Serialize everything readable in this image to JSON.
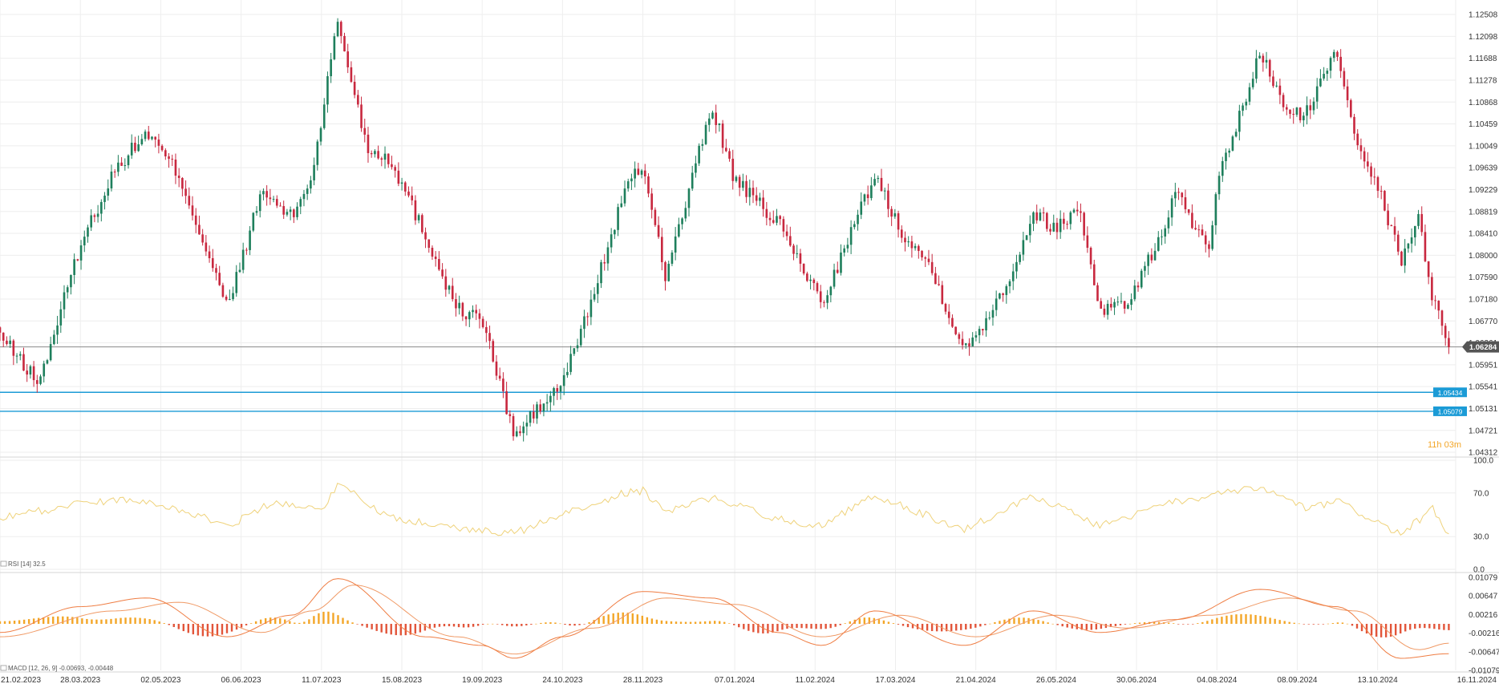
{
  "colors": {
    "up": "#1e7f5c",
    "down": "#c8283f",
    "price_line": "#8a8a8a",
    "support": "#1b9bd6",
    "rsi": "#efd27a",
    "macd_line": "#ef7d43",
    "signal_line": "#f09a66",
    "hist_pos": "#f3a628",
    "hist_neg": "#e2553a",
    "grid": "#eeeeee",
    "countdown": "#f3a628"
  },
  "countdown": "11h 03m",
  "chart_data": [
    {
      "type": "candlestick",
      "title": "",
      "x_axis": {
        "type": "date",
        "range": [
          "2023-02-21",
          "2024-11-16"
        ],
        "tick_labels": [
          "21.02.2023",
          "28.03.2023",
          "02.05.2023",
          "06.06.2023",
          "11.07.2023",
          "15.08.2023",
          "19.09.2023",
          "24.10.2023",
          "28.11.2023",
          "07.01.2024",
          "11.02.2024",
          "17.03.2024",
          "21.04.2024",
          "26.05.2024",
          "30.06.2024",
          "04.08.2024",
          "08.09.2024",
          "13.10.2024",
          "16.11.2024"
        ]
      },
      "y_axis": {
        "range": [
          1.04312,
          1.12508
        ],
        "tick_labels": [
          "1.12508",
          "1.12098",
          "1.11688",
          "1.11278",
          "1.10868",
          "1.10459",
          "1.10049",
          "1.09639",
          "1.09229",
          "1.08819",
          "1.08410",
          "1.08000",
          "1.07590",
          "1.07180",
          "1.06770",
          "1.06361",
          "1.05951",
          "1.05541",
          "1.05131",
          "1.04721",
          "1.04312"
        ]
      },
      "grid": true,
      "current_price": {
        "value": 1.06284,
        "label": "1.06284"
      },
      "horizontal_lines": [
        {
          "value": 1.05434,
          "label": "1.05434"
        },
        {
          "value": 1.05079,
          "label": "1.05079"
        }
      ],
      "series": [
        {
          "closes": [
            {
              "date": "2023-02-21",
              "close": 1.065
            },
            {
              "date": "2023-03-10",
              "close": 1.056
            },
            {
              "date": "2023-03-28",
              "close": 1.082
            },
            {
              "date": "2023-04-12",
              "close": 1.096
            },
            {
              "date": "2023-04-26",
              "close": 1.103
            },
            {
              "date": "2023-05-10",
              "close": 1.095
            },
            {
              "date": "2023-05-31",
              "close": 1.07
            },
            {
              "date": "2023-06-15",
              "close": 1.092
            },
            {
              "date": "2023-06-28",
              "close": 1.087
            },
            {
              "date": "2023-07-07",
              "close": 1.095
            },
            {
              "date": "2023-07-18",
              "close": 1.124
            },
            {
              "date": "2023-07-31",
              "close": 1.1
            },
            {
              "date": "2023-08-10",
              "close": 1.098
            },
            {
              "date": "2023-08-25",
              "close": 1.084
            },
            {
              "date": "2023-09-08",
              "close": 1.07
            },
            {
              "date": "2023-09-19",
              "close": 1.068
            },
            {
              "date": "2023-10-03",
              "close": 1.046
            },
            {
              "date": "2023-10-13",
              "close": 1.051
            },
            {
              "date": "2023-10-24",
              "close": 1.056
            },
            {
              "date": "2023-11-06",
              "close": 1.072
            },
            {
              "date": "2023-11-20",
              "close": 1.092
            },
            {
              "date": "2023-11-28",
              "close": 1.097
            },
            {
              "date": "2023-12-08",
              "close": 1.076
            },
            {
              "date": "2023-12-28",
              "close": 1.108
            },
            {
              "date": "2024-01-07",
              "close": 1.094
            },
            {
              "date": "2024-01-26",
              "close": 1.086
            },
            {
              "date": "2024-02-14",
              "close": 1.071
            },
            {
              "date": "2024-03-08",
              "close": 1.095
            },
            {
              "date": "2024-03-19",
              "close": 1.085
            },
            {
              "date": "2024-04-01",
              "close": 1.078
            },
            {
              "date": "2024-04-16",
              "close": 1.062
            },
            {
              "date": "2024-04-21",
              "close": 1.065
            },
            {
              "date": "2024-05-06",
              "close": 1.076
            },
            {
              "date": "2024-05-16",
              "close": 1.088
            },
            {
              "date": "2024-05-26",
              "close": 1.085
            },
            {
              "date": "2024-06-05",
              "close": 1.089
            },
            {
              "date": "2024-06-14",
              "close": 1.07
            },
            {
              "date": "2024-06-26",
              "close": 1.071
            },
            {
              "date": "2024-07-10",
              "close": 1.083
            },
            {
              "date": "2024-07-17",
              "close": 1.092
            },
            {
              "date": "2024-08-01",
              "close": 1.08
            },
            {
              "date": "2024-08-04",
              "close": 1.093
            },
            {
              "date": "2024-08-23",
              "close": 1.118
            },
            {
              "date": "2024-09-04",
              "close": 1.106
            },
            {
              "date": "2024-09-13",
              "close": 1.107
            },
            {
              "date": "2024-09-25",
              "close": 1.119
            },
            {
              "date": "2024-10-03",
              "close": 1.103
            },
            {
              "date": "2024-10-13",
              "close": 1.093
            },
            {
              "date": "2024-10-23",
              "close": 1.079
            },
            {
              "date": "2024-10-31",
              "close": 1.087
            },
            {
              "date": "2024-11-06",
              "close": 1.072
            },
            {
              "date": "2024-11-13",
              "close": 1.0628
            }
          ]
        }
      ]
    },
    {
      "type": "line",
      "title": "",
      "legend_text": "RSI [14]  32.5",
      "y_axis": {
        "range": [
          0,
          100
        ],
        "tick_labels": [
          "100.0",
          "70.0",
          "30.0",
          "0.0"
        ]
      },
      "series": [
        {
          "values_by_date": [
            {
              "date": "2023-02-21",
              "value": 47
            },
            {
              "date": "2023-03-28",
              "value": 60
            },
            {
              "date": "2023-04-20",
              "value": 65
            },
            {
              "date": "2023-05-10",
              "value": 55
            },
            {
              "date": "2023-06-01",
              "value": 40
            },
            {
              "date": "2023-06-20",
              "value": 62
            },
            {
              "date": "2023-07-11",
              "value": 55
            },
            {
              "date": "2023-07-18",
              "value": 78
            },
            {
              "date": "2023-08-10",
              "value": 48
            },
            {
              "date": "2023-09-08",
              "value": 38
            },
            {
              "date": "2023-09-19",
              "value": 35
            },
            {
              "date": "2023-10-03",
              "value": 33
            },
            {
              "date": "2023-10-24",
              "value": 50
            },
            {
              "date": "2023-11-20",
              "value": 70
            },
            {
              "date": "2023-11-28",
              "value": 72
            },
            {
              "date": "2023-12-08",
              "value": 52
            },
            {
              "date": "2023-12-28",
              "value": 66
            },
            {
              "date": "2024-01-26",
              "value": 46
            },
            {
              "date": "2024-02-14",
              "value": 40
            },
            {
              "date": "2024-03-08",
              "value": 68
            },
            {
              "date": "2024-04-16",
              "value": 36
            },
            {
              "date": "2024-05-16",
              "value": 68
            },
            {
              "date": "2024-06-14",
              "value": 40
            },
            {
              "date": "2024-07-17",
              "value": 62
            },
            {
              "date": "2024-08-23",
              "value": 75
            },
            {
              "date": "2024-09-13",
              "value": 55
            },
            {
              "date": "2024-09-25",
              "value": 63
            },
            {
              "date": "2024-10-23",
              "value": 32
            },
            {
              "date": "2024-11-06",
              "value": 55
            },
            {
              "date": "2024-11-13",
              "value": 32.5
            }
          ]
        }
      ]
    },
    {
      "type": "line+bar",
      "title": "",
      "legend_text": "MACD [12, 26, 9]  -0.00693,  -0.00448",
      "y_axis": {
        "range": [
          -0.01079,
          0.01079
        ],
        "tick_labels": [
          "0.01079",
          "0.00647",
          "0.00216",
          "-0.00216",
          "-0.00647",
          "-0.01079"
        ]
      },
      "series": [
        {
          "name": "MACD",
          "values_by_date": [
            {
              "date": "2023-02-21",
              "value": -0.002
            },
            {
              "date": "2023-03-28",
              "value": 0.004
            },
            {
              "date": "2023-04-26",
              "value": 0.006
            },
            {
              "date": "2023-05-31",
              "value": -0.003
            },
            {
              "date": "2023-06-28",
              "value": 0.002
            },
            {
              "date": "2023-07-18",
              "value": 0.0105
            },
            {
              "date": "2023-08-25",
              "value": -0.003
            },
            {
              "date": "2023-09-19",
              "value": -0.005
            },
            {
              "date": "2023-10-03",
              "value": -0.008
            },
            {
              "date": "2023-10-24",
              "value": -0.003
            },
            {
              "date": "2023-11-28",
              "value": 0.0075
            },
            {
              "date": "2023-12-28",
              "value": 0.006
            },
            {
              "date": "2024-01-26",
              "value": -0.002
            },
            {
              "date": "2024-02-14",
              "value": -0.005
            },
            {
              "date": "2024-03-08",
              "value": 0.003
            },
            {
              "date": "2024-04-16",
              "value": -0.005
            },
            {
              "date": "2024-05-16",
              "value": 0.003
            },
            {
              "date": "2024-06-14",
              "value": -0.002
            },
            {
              "date": "2024-07-17",
              "value": 0.001
            },
            {
              "date": "2024-08-23",
              "value": 0.008
            },
            {
              "date": "2024-09-25",
              "value": 0.004
            },
            {
              "date": "2024-10-23",
              "value": -0.008
            },
            {
              "date": "2024-11-13",
              "value": -0.00693
            }
          ]
        },
        {
          "name": "Signal",
          "values_by_date": [
            {
              "date": "2023-02-21",
              "value": -0.003
            },
            {
              "date": "2023-04-12",
              "value": 0.003
            },
            {
              "date": "2023-05-10",
              "value": 0.005
            },
            {
              "date": "2023-06-15",
              "value": -0.002
            },
            {
              "date": "2023-07-07",
              "value": 0.003
            },
            {
              "date": "2023-07-25",
              "value": 0.009
            },
            {
              "date": "2023-09-08",
              "value": -0.003
            },
            {
              "date": "2023-10-03",
              "value": -0.007
            },
            {
              "date": "2023-11-06",
              "value": -0.001
            },
            {
              "date": "2023-12-08",
              "value": 0.006
            },
            {
              "date": "2024-01-07",
              "value": 0.0045
            },
            {
              "date": "2024-02-14",
              "value": -0.003
            },
            {
              "date": "2024-03-19",
              "value": 0.002
            },
            {
              "date": "2024-04-21",
              "value": -0.003
            },
            {
              "date": "2024-05-26",
              "value": 0.002
            },
            {
              "date": "2024-06-26",
              "value": -0.001
            },
            {
              "date": "2024-08-01",
              "value": 0.002
            },
            {
              "date": "2024-09-04",
              "value": 0.006
            },
            {
              "date": "2024-10-03",
              "value": 0.003
            },
            {
              "date": "2024-10-31",
              "value": -0.006
            },
            {
              "date": "2024-11-13",
              "value": -0.00448
            }
          ]
        }
      ]
    }
  ]
}
